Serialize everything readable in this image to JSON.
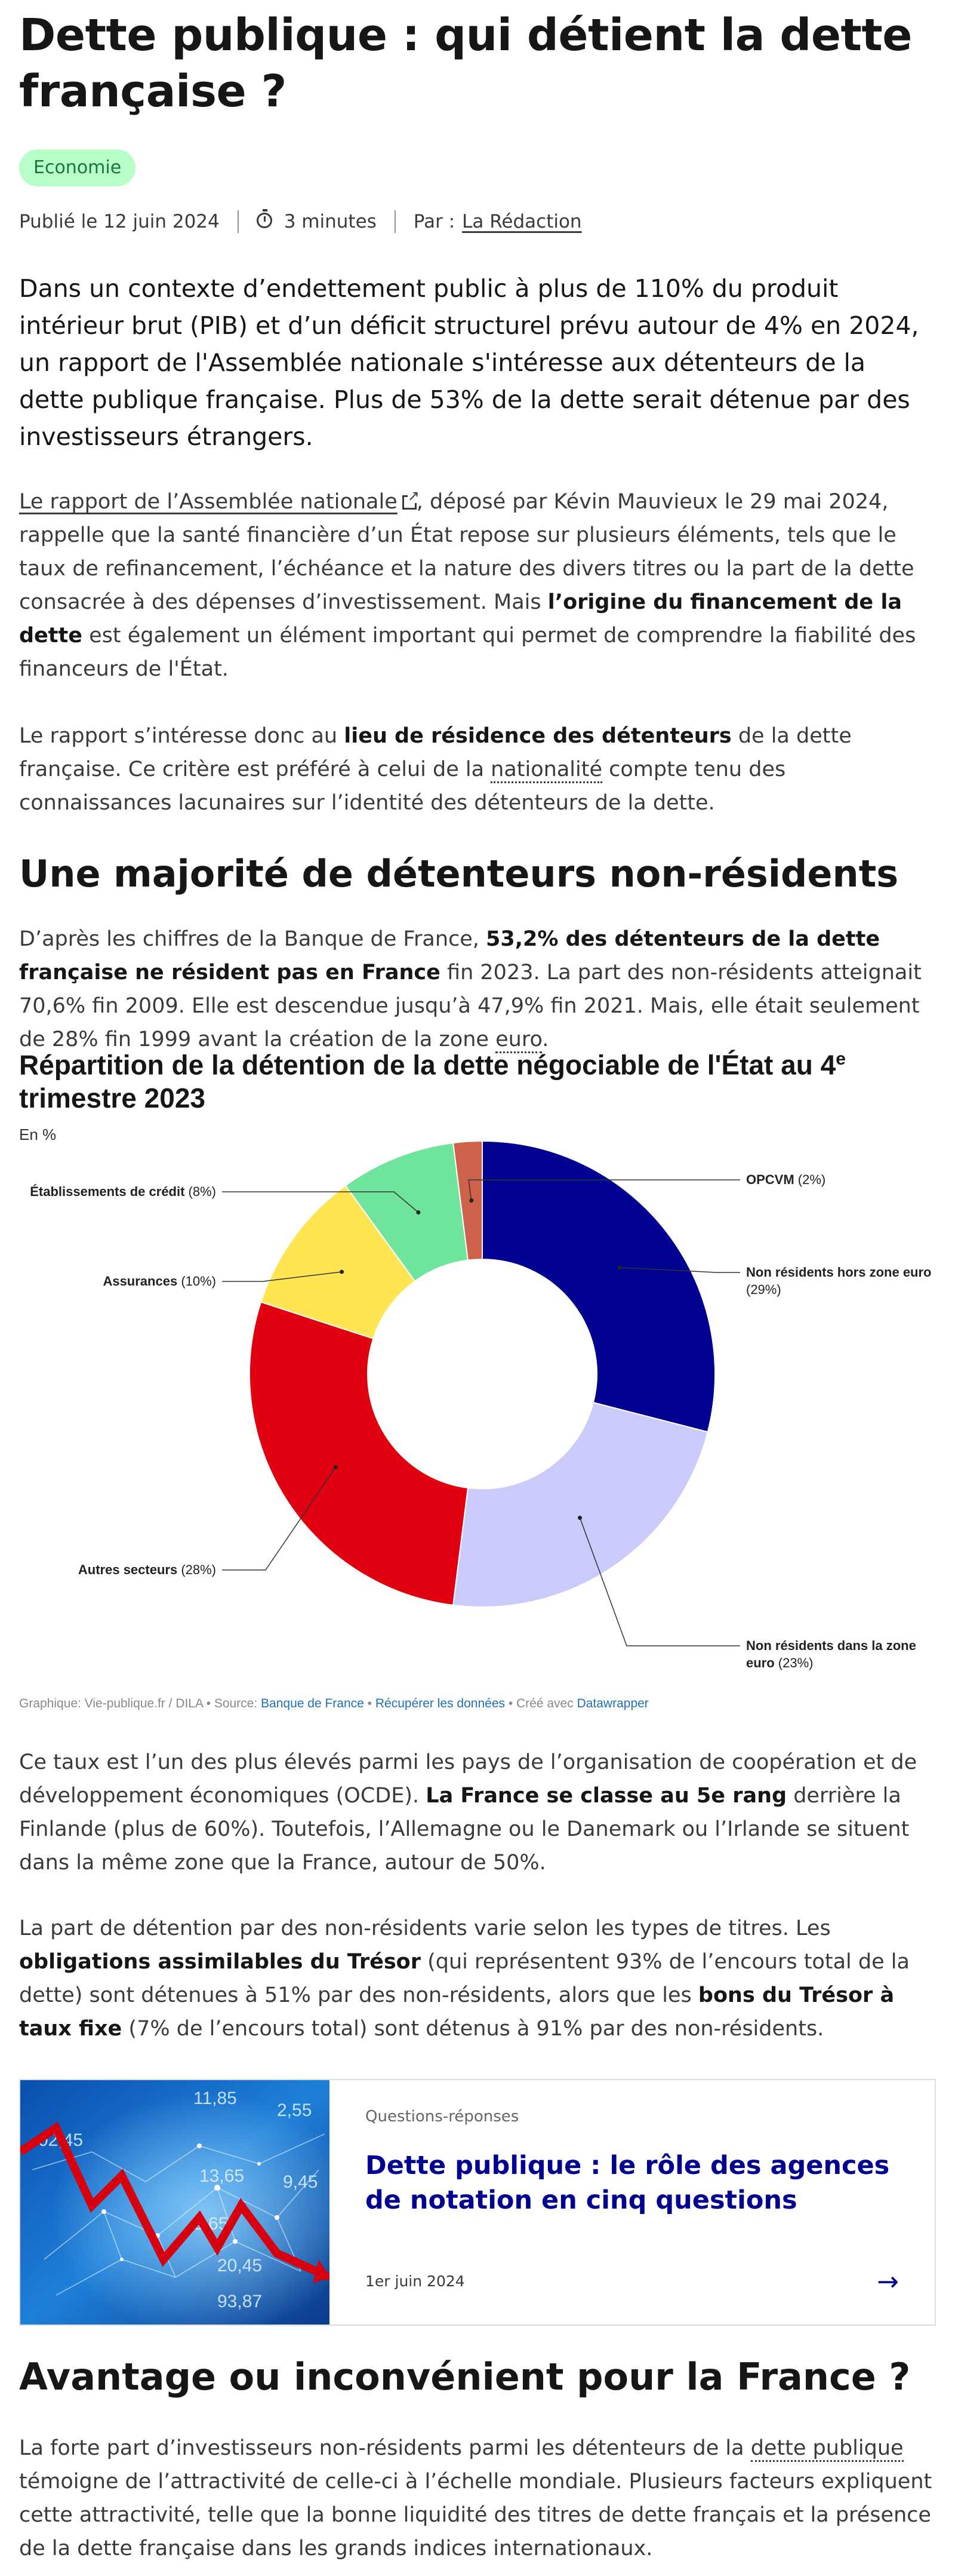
{
  "article": {
    "title": "Dette publique : qui détient la dette française ?",
    "tag": "Economie",
    "published": "Publié le 12 juin 2024",
    "read_time": "3 minutes",
    "author_prefix": "Par :",
    "author": "La Rédaction",
    "lead": "Dans un contexte d’endettement public à plus de 110% du produit intérieur brut (PIB) et d’un déficit structurel prévu autour de 4% en 2024, un rapport de l'Assemblée nationale s'intéresse aux détenteurs de la dette publique française. Plus de 53% de la dette serait détenue par des investisseurs étrangers.",
    "p1": {
      "link": "Le rapport de l’Assemblée nationale",
      "t1": ", déposé par Kévin Mauvieux le 29 mai 2024, rappelle que la santé financière d’un État repose sur plusieurs éléments, tels que le taux de refinancement, l’échéance et la nature des divers titres ou la part de la dette consacrée à des dépenses d’investissement. Mais ",
      "b1": "l’origine du financement de la dette",
      "t2": " est également un élément important qui permet de comprendre la fiabilité des financeurs de l'État."
    },
    "p2": {
      "t1": "Le rapport s’intéresse donc au ",
      "b1": "lieu de résidence des détenteurs",
      "t2": " de la dette française. Ce critère est préféré à celui de la ",
      "d1": "nationalité",
      "t3": " compte tenu des connaissances lacunaires sur l’identité des détenteurs de la dette."
    },
    "h2_1": "Une majorité de détenteurs non-résidents",
    "p3": {
      "t1": "D’après les chiffres de la Banque de France, ",
      "b1": "53,2% des détenteurs de la dette française ne résident pas en France",
      "t2": " fin 2023. La part des non-résidents atteignait 70,6% fin 2009. Elle est descendue jusqu’à 47,9% fin 2021. Mais, elle était seulement de 28% fin 1999 avant la création de la zone ",
      "d1": "euro",
      "t3": "."
    },
    "p4": {
      "t1": "Ce taux est l’un des plus élevés parmi les pays de l’organisation de coopération et de développement économiques (OCDE). ",
      "b1": "La France se classe au 5e rang",
      "t2": " derrière la Finlande (plus de 60%). Toutefois, l’Allemagne ou le Danemark ou l’Irlande se situent dans la même zone que la France, autour de 50%."
    },
    "p5": {
      "t1": "La part de détention par des non-résidents varie selon les types de titres. Les ",
      "b1": "obligations assimilables du Trésor",
      "t2": " (qui représentent 93% de l’encours total de la dette) sont détenues à 51% par des non-résidents, alors que les ",
      "b2": "bons du Trésor à taux fixe",
      "t3": " (7% de l’encours total) sont détenus à 91% par des non-résidents."
    },
    "h2_2": "Avantage ou inconvénient pour la France ?",
    "p6": {
      "t1": "La forte part d’investisseurs non-résidents parmi les détenteurs de la ",
      "d1": "dette publique",
      "t2": " témoigne de l’attractivité de celle-ci à l’échelle mondiale. Plusieurs facteurs expliquent cette attractivité, telle que la bonne liquidité des titres de dette français et la présence de la dette française dans les grands indices internationaux."
    }
  },
  "chart_data": {
    "type": "pie",
    "title_main": "Répartition de la détention de la dette négociable de l'État au 4",
    "title_sup": "e",
    "title_end": " trimestre 2023",
    "subtitle": "En %",
    "categories": [
      "Non résidents hors zone euro",
      "Non résidents dans la zone euro",
      "Autres secteurs",
      "Assurances",
      "Établissements de crédit",
      "OPCVM"
    ],
    "values": [
      29,
      23,
      28,
      10,
      8,
      2
    ],
    "colors": [
      "#000091",
      "#cacafb",
      "#e1000f",
      "#ffe552",
      "#6fe49d",
      "#ce614a"
    ],
    "donut": true,
    "footer": {
      "credit": "Graphique: Vie-publique.fr / DILA • Source: ",
      "source": "Banque de France",
      "sep1": " • ",
      "download": "Récupérer les données",
      "sep2": " • Créé avec ",
      "tool": "Datawrapper"
    }
  },
  "related_card": {
    "kind": "Questions-réponses",
    "title": "Dette publique : le rôle des agences de notation en cinq questions",
    "date": "1er juin 2024",
    "arrow": "→",
    "thumb_numbers": [
      "11,85",
      "2,55",
      "02,45",
      "13,65",
      "9,45",
      "8,65",
      "20,45",
      "93,87"
    ]
  }
}
